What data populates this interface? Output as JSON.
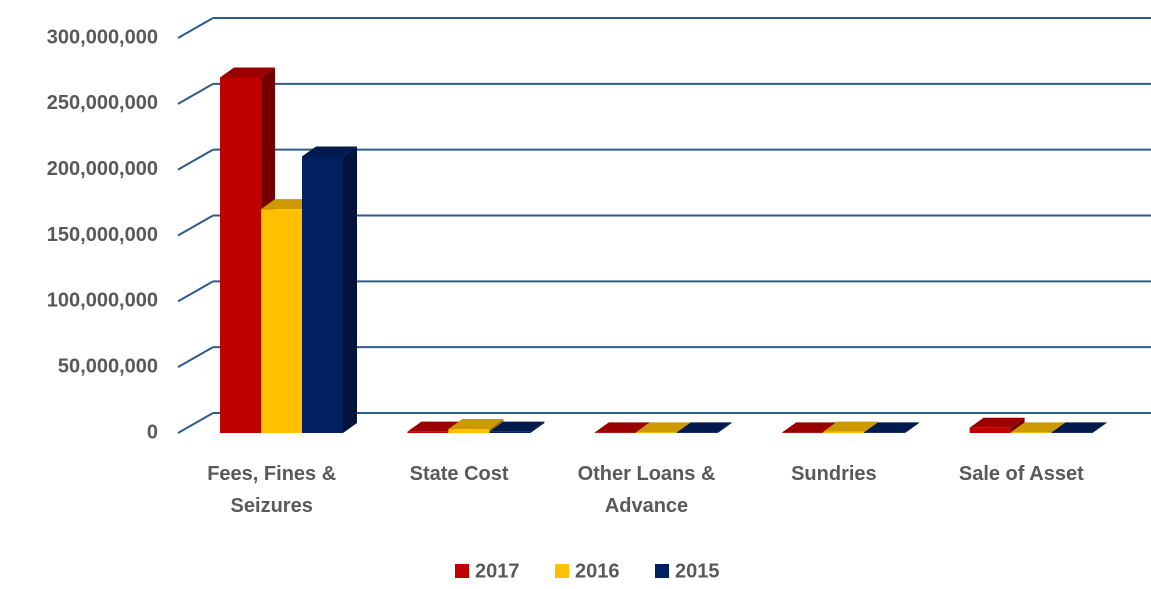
{
  "chart_data": {
    "type": "bar3d",
    "categories": [
      "Fees, Fines & Seizures",
      "State Cost",
      "Other Loans & Advance",
      "Sundries",
      "Sale of Asset"
    ],
    "series": [
      {
        "name": "2017",
        "color": "#c00000",
        "values": [
          270000000,
          1000000,
          500000,
          500000,
          4000000
        ]
      },
      {
        "name": "2016",
        "color": "#ffc000",
        "values": [
          170000000,
          3000000,
          500000,
          1000000,
          500000
        ]
      },
      {
        "name": "2015",
        "color": "#002060",
        "values": [
          210000000,
          1000000,
          500000,
          500000,
          500000
        ]
      }
    ],
    "ylim": [
      0,
      300000000
    ],
    "yticks": [
      0,
      {
        "value": 50000000,
        "label": "50,000,000"
      },
      {
        "value": 100000000,
        "label": "100,000,000"
      },
      {
        "value": 150000000,
        "label": "150,000,000"
      },
      {
        "value": 200000000,
        "label": "200,000,000"
      },
      {
        "value": 250000000,
        "label": "250,000,000"
      },
      {
        "value": 300000000,
        "label": "300,000,000"
      }
    ],
    "grid": true,
    "legend": "bottom"
  }
}
